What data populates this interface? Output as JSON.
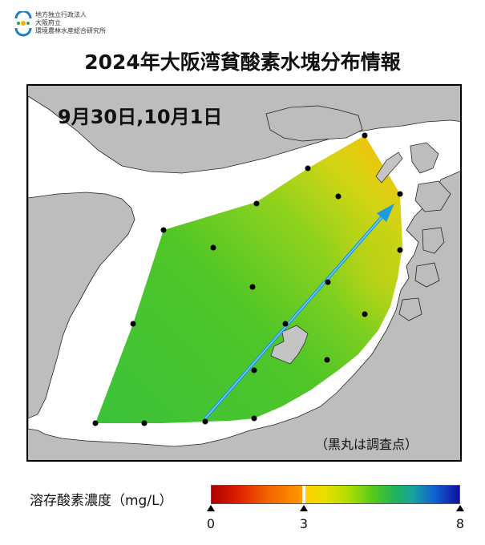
{
  "header": {
    "org_line1": "地方独立行政法人",
    "org_line2": "大阪府立",
    "org_line3": "環境農林水産総合研究所",
    "title": "2024年大阪湾貧酸素水塊分布情報"
  },
  "map": {
    "date_label": "9月30日,10月1日",
    "note": "（黒丸は調査点）",
    "sea_color": "#ffffff",
    "land_color": "#bdbdbd",
    "station_color": "#000000",
    "arrow_color": "#1e9be0"
  },
  "legend": {
    "label": "溶存酸素濃度（mg/L）",
    "ticks": [
      "0",
      "3",
      "8"
    ],
    "min": 0,
    "threshold": 3,
    "max": 8
  }
}
